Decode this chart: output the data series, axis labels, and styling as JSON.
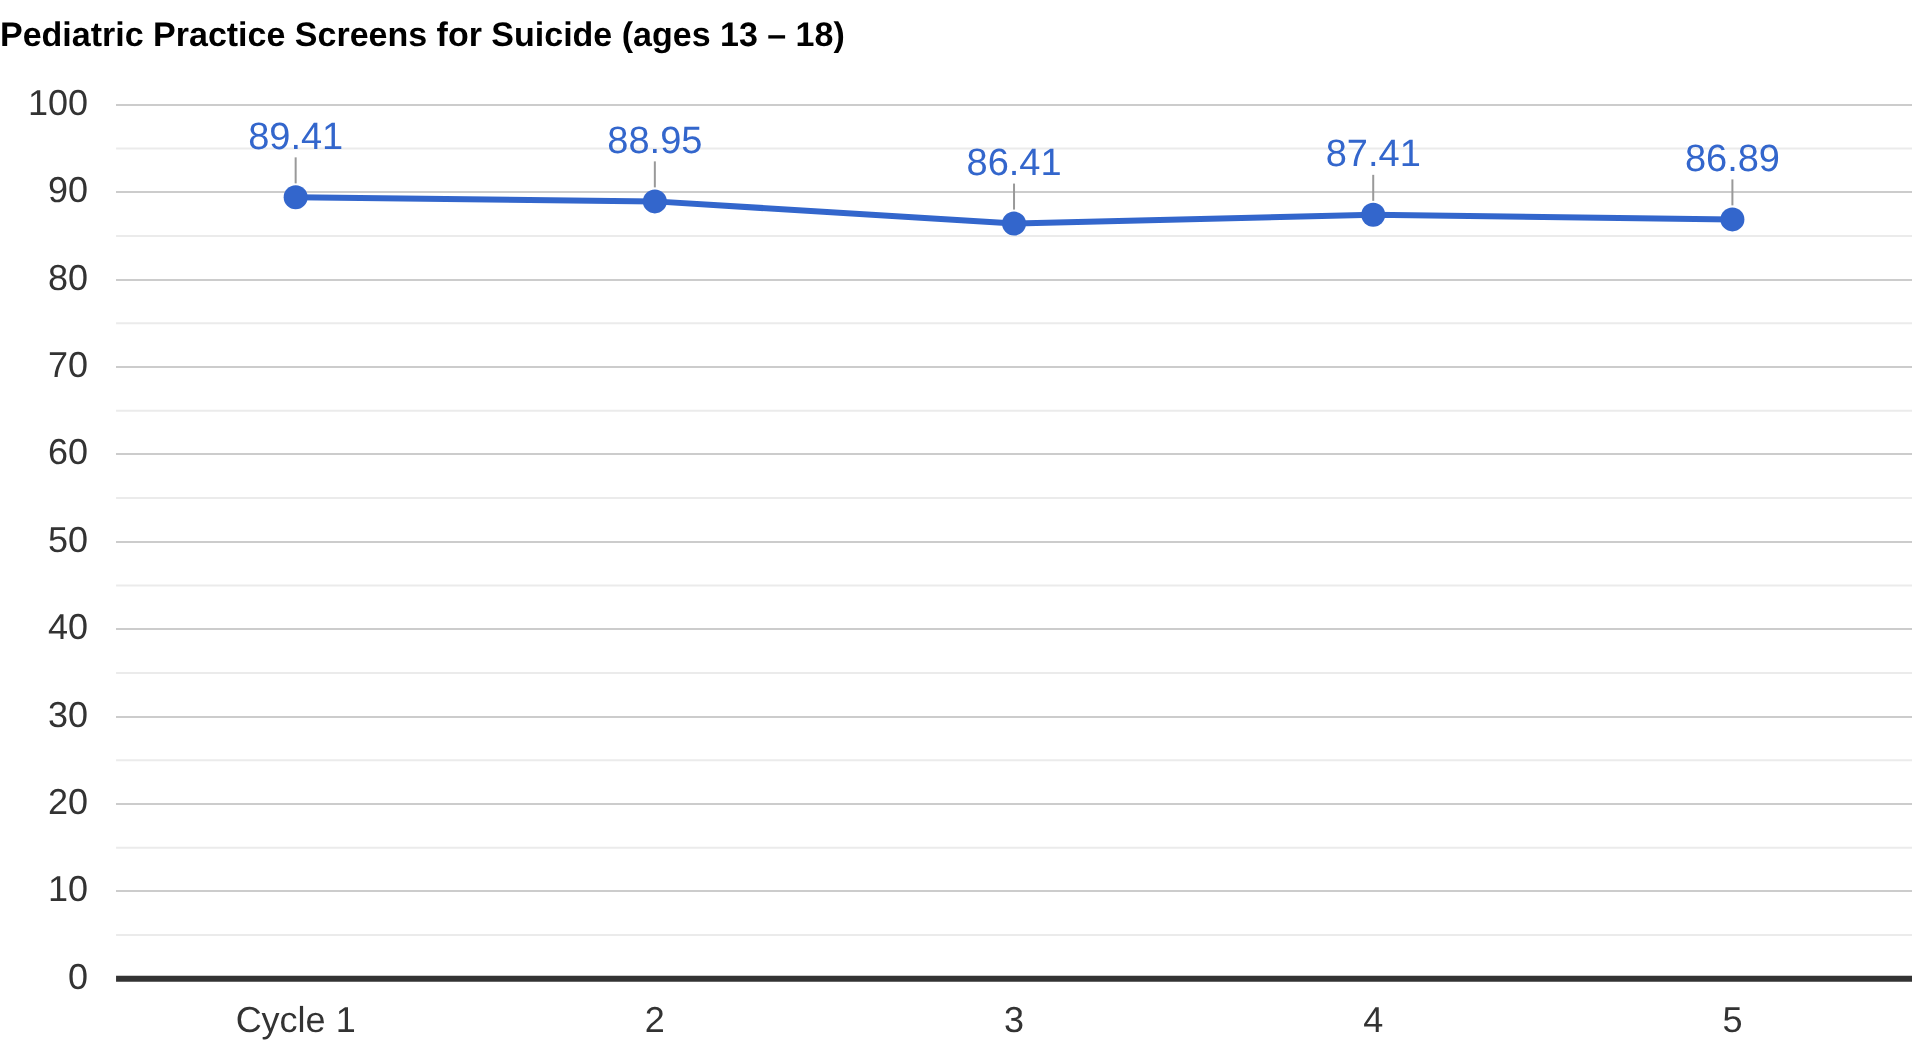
{
  "chart_data": {
    "type": "line",
    "title": "Pediatric Practice Screens for Suicide (ages 13 – 18)",
    "categories": [
      "Cycle 1",
      "2",
      "3",
      "4",
      "5"
    ],
    "series": [
      {
        "color": "#3366cc",
        "values": [
          89.41,
          88.95,
          86.41,
          87.41,
          86.89
        ]
      }
    ],
    "ylim": [
      0,
      100
    ],
    "yticks": [
      0,
      10,
      20,
      30,
      40,
      50,
      60,
      70,
      80,
      90,
      100
    ],
    "grid": "y",
    "marker": "circle",
    "line_style": "solid",
    "data_labels": true,
    "legend": false
  }
}
